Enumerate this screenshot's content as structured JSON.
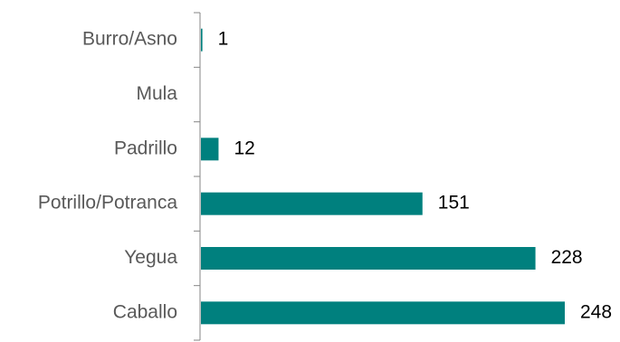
{
  "chart_data": {
    "type": "bar",
    "orientation": "horizontal",
    "categories": [
      "Burro/Asno",
      "Mula",
      "Padrillo",
      "Potrillo/Potranca",
      "Yegua",
      "Caballo"
    ],
    "values": [
      1,
      0,
      12,
      151,
      228,
      248
    ],
    "value_labels": [
      "1",
      "",
      "12",
      "151",
      "228",
      "248"
    ],
    "title": "",
    "xlabel": "",
    "ylabel": "",
    "xlim": [
      0,
      248
    ],
    "grid": false,
    "legend": "none",
    "bar_color": "#00807E",
    "axis_color": "#868686",
    "category_label_color": "#595959",
    "value_label_color": "#000000"
  }
}
